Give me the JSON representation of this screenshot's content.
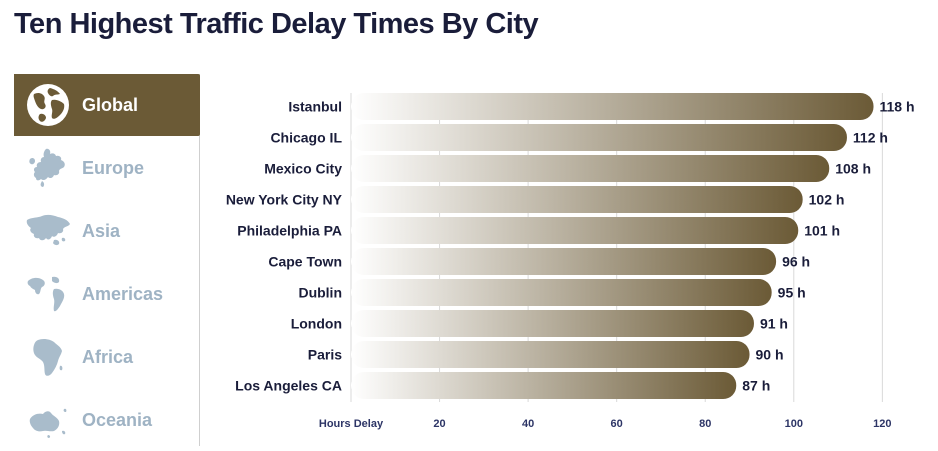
{
  "title": "Ten Highest Traffic Delay Times By City",
  "sidebar": {
    "items": [
      {
        "label": "Global",
        "icon": "globe-icon",
        "active": true
      },
      {
        "label": "Europe",
        "icon": "europe-map-icon",
        "active": false
      },
      {
        "label": "Asia",
        "icon": "asia-map-icon",
        "active": false
      },
      {
        "label": "Americas",
        "icon": "americas-map-icon",
        "active": false
      },
      {
        "label": "Africa",
        "icon": "africa-map-icon",
        "active": false
      },
      {
        "label": "Oceania",
        "icon": "oceania-map-icon",
        "active": false
      }
    ]
  },
  "colors": {
    "accent": "#6b5a36",
    "bar_light": "#ffffff",
    "bar_dark": "#6b5a36",
    "inactive_text": "#9fb3c4",
    "title_text": "#1a1d3a"
  },
  "chart_data": {
    "type": "bar",
    "orientation": "horizontal",
    "categories": [
      "Istanbul",
      "Chicago IL",
      "Mexico City",
      "New York City NY",
      "Philadelphia PA",
      "Cape Town",
      "Dublin",
      "London",
      "Paris",
      "Los Angeles CA"
    ],
    "values": [
      118,
      112,
      108,
      102,
      101,
      96,
      95,
      91,
      90,
      87
    ],
    "value_labels": [
      "118 h",
      "112 h",
      "108 h",
      "102 h",
      "101 h",
      "96 h",
      "95 h",
      "91 h",
      "90 h",
      "87 h"
    ],
    "xlabel": "Hours Delay",
    "xticks": [
      20,
      40,
      60,
      80,
      100,
      120
    ],
    "xlim": [
      0,
      120
    ],
    "grid": true
  }
}
